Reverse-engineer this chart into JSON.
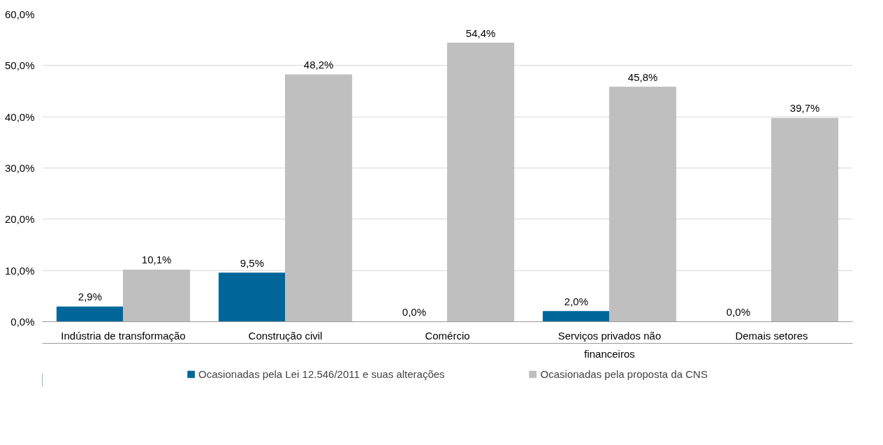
{
  "chart_data": {
    "type": "bar",
    "categories": [
      "Indústria de transformação",
      "Construção civil",
      "Comércio",
      "Serviços privados não financeiros",
      "Demais setores"
    ],
    "series": [
      {
        "name": "Ocasionadas pela Lei 12.546/2011 e suas alterações",
        "color": "#006699",
        "values": [
          2.9,
          9.5,
          0.0,
          2.0,
          0.0
        ],
        "value_labels": [
          "2,9%",
          "9,5%",
          "0,0%",
          "2,0%",
          "0,0%"
        ]
      },
      {
        "name": "Ocasionadas pela proposta da CNS",
        "color": "#bfbfbf",
        "values": [
          10.1,
          48.2,
          54.4,
          45.8,
          39.7
        ],
        "value_labels": [
          "10,1%",
          "48,2%",
          "54,4%",
          "45,8%",
          "39,7%"
        ]
      }
    ],
    "ylim": [
      0,
      60
    ],
    "yticks": [
      {
        "value": 0,
        "label": "0,0%"
      },
      {
        "value": 10,
        "label": "10,0%"
      },
      {
        "value": 20,
        "label": "20,0%"
      },
      {
        "value": 30,
        "label": "30,0%"
      },
      {
        "value": 40,
        "label": "40,0%"
      },
      {
        "value": 50,
        "label": "50,0%"
      },
      {
        "value": 60,
        "label": "60,0%"
      }
    ],
    "grid": "y",
    "legend": "bottom"
  }
}
